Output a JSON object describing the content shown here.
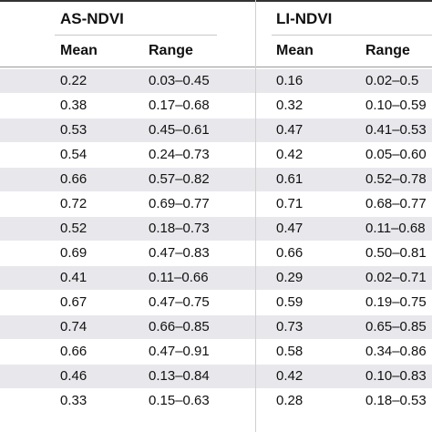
{
  "table": {
    "groups": {
      "as": {
        "label": "AS-NDVI",
        "mean_label": "Mean",
        "range_label": "Range"
      },
      "li": {
        "label": "LI-NDVI",
        "mean_label": "Mean",
        "range_label": "Range"
      }
    },
    "rows": [
      {
        "as_mean": "0.22",
        "as_range": "0.03–0.45",
        "li_mean": "0.16",
        "li_range": "0.02–0.5"
      },
      {
        "as_mean": "0.38",
        "as_range": "0.17–0.68",
        "li_mean": "0.32",
        "li_range": "0.10–0.59"
      },
      {
        "as_mean": "0.53",
        "as_range": "0.45–0.61",
        "li_mean": "0.47",
        "li_range": "0.41–0.53"
      },
      {
        "as_mean": "0.54",
        "as_range": "0.24–0.73",
        "li_mean": "0.42",
        "li_range": "0.05–0.60"
      },
      {
        "as_mean": "0.66",
        "as_range": "0.57–0.82",
        "li_mean": "0.61",
        "li_range": "0.52–0.78"
      },
      {
        "as_mean": "0.72",
        "as_range": "0.69–0.77",
        "li_mean": "0.71",
        "li_range": "0.68–0.77"
      },
      {
        "as_mean": "0.52",
        "as_range": "0.18–0.73",
        "li_mean": "0.47",
        "li_range": "0.11–0.68"
      },
      {
        "as_mean": "0.69",
        "as_range": "0.47–0.83",
        "li_mean": "0.66",
        "li_range": "0.50–0.81"
      },
      {
        "as_mean": "0.41",
        "as_range": "0.11–0.66",
        "li_mean": "0.29",
        "li_range": "0.02–0.71"
      },
      {
        "as_mean": "0.67",
        "as_range": "0.47–0.75",
        "li_mean": "0.59",
        "li_range": "0.19–0.75"
      },
      {
        "as_mean": "0.74",
        "as_range": "0.66–0.85",
        "li_mean": "0.73",
        "li_range": "0.65–0.85"
      },
      {
        "as_mean": "0.66",
        "as_range": "0.47–0.91",
        "li_mean": "0.58",
        "li_range": "0.34–0.86"
      },
      {
        "as_mean": "0.46",
        "as_range": "0.13–0.84",
        "li_mean": "0.42",
        "li_range": "0.10–0.83"
      },
      {
        "as_mean": "0.33",
        "as_range": "0.15–0.63",
        "li_mean": "0.28",
        "li_range": "0.18–0.53"
      }
    ]
  }
}
